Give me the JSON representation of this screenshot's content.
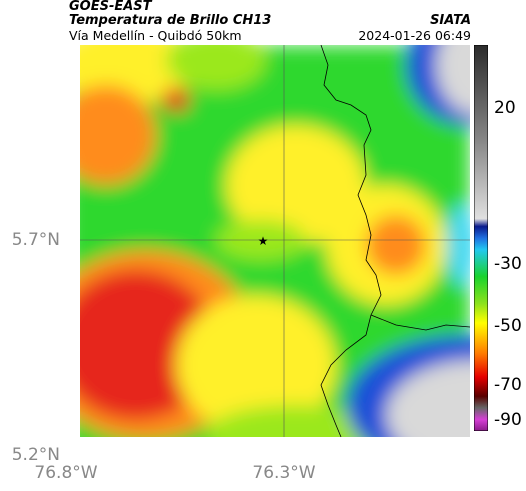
{
  "header": {
    "title_line1": "GOES-EAST",
    "title_line2": "Temperatura de Brillo CH13",
    "subtitle": "Vía Medellín - Quibdó 50km",
    "org": "SIATA",
    "timestamp": "2024-01-26 06:49"
  },
  "axes": {
    "y_ticks": [
      "5.7°N",
      "5.2°N"
    ],
    "x_ticks": [
      "76.8°W",
      "76.3°W"
    ]
  },
  "colorbar": {
    "ticks": [
      "20",
      "-30",
      "-50",
      "-70",
      "-90"
    ],
    "stops": [
      "#2b2b2b",
      "#888888",
      "#e0e0e0",
      "#0a1a8c",
      "#1f6fe0",
      "#22c8f0",
      "#1ad32e",
      "#8ce21c",
      "#ffff00",
      "#ff7a00",
      "#e50000",
      "#5a0000",
      "#d63fd6"
    ]
  },
  "map": {
    "marker": "★",
    "colors": {
      "red": "#e6281e",
      "orange": "#ff8c1a",
      "yellow": "#fff02a",
      "lightgreen": "#9be81e",
      "green": "#2ed82e",
      "cyan": "#3fd8f0",
      "blue": "#1f4fd8",
      "navy": "#0a1470",
      "gray": "#d9d9d9"
    }
  }
}
